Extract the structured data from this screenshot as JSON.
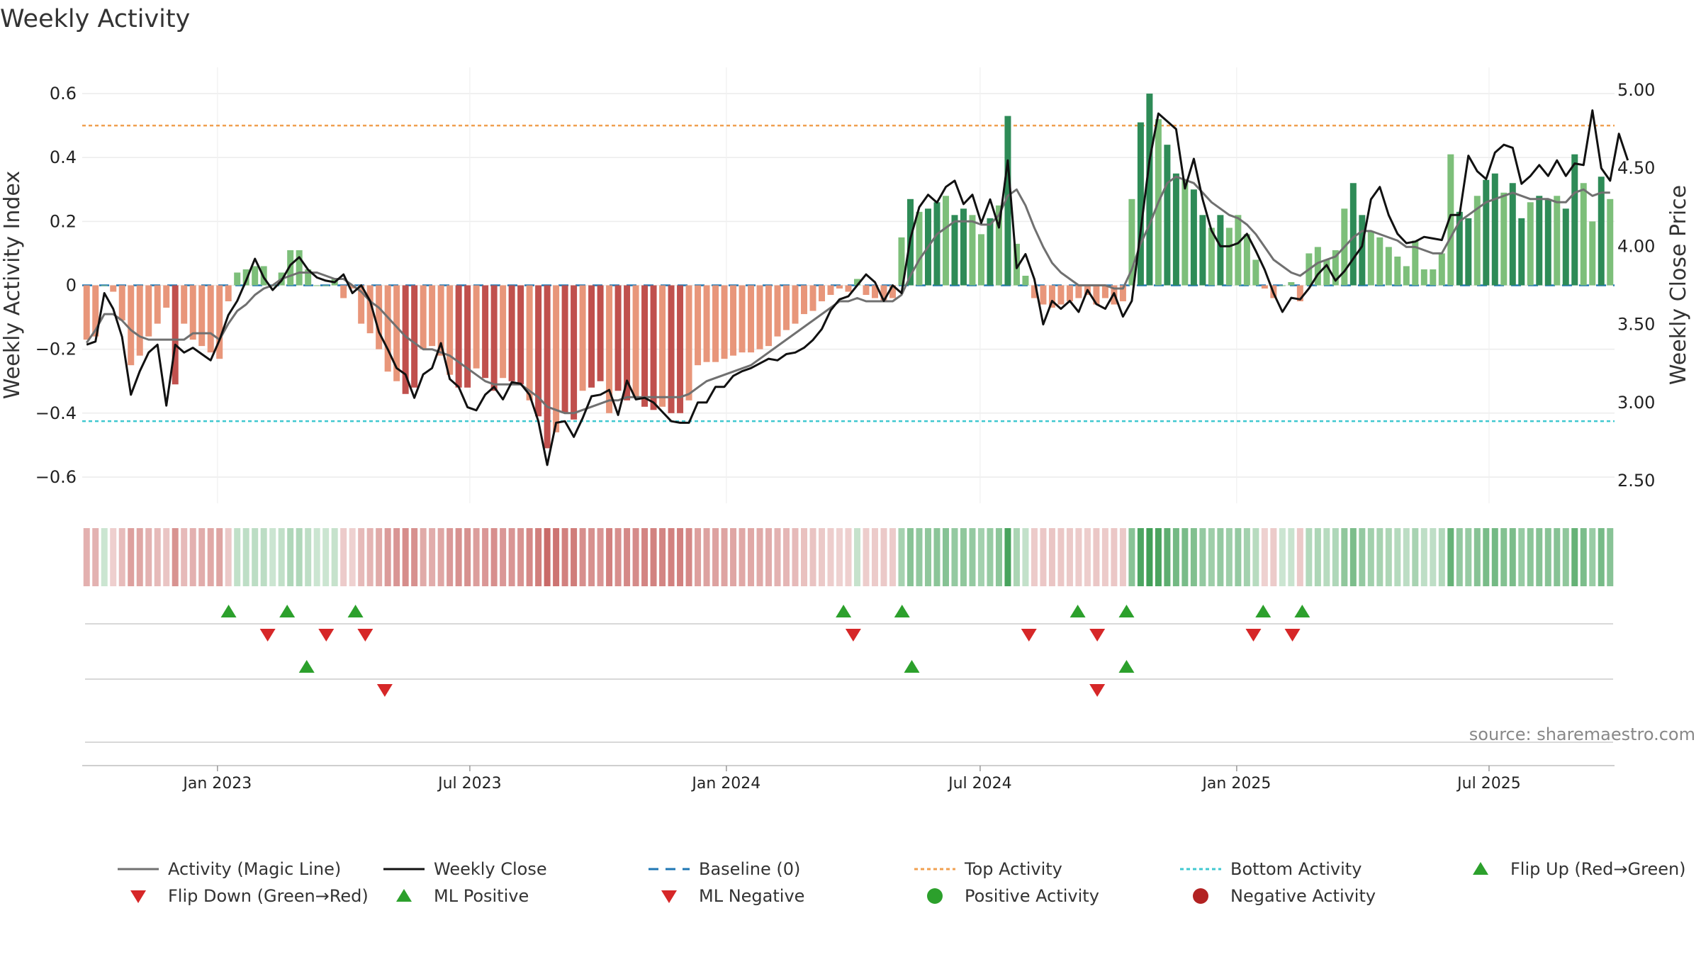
{
  "chart_data": {
    "type": "bar",
    "title": "Weekly Activity",
    "ylabel": "Weekly Activity Index",
    "y2label": "Weekly Close Price",
    "ylim": [
      -0.66,
      0.66
    ],
    "y2lim": [
      2.4,
      5.1
    ],
    "yticks": [
      0.6,
      0.4,
      0.2,
      0,
      -0.2,
      -0.4,
      -0.6
    ],
    "ytick_labels": [
      "0.6",
      "0.4",
      "0.2",
      "0",
      "−0.2",
      "−0.4",
      "−0.6"
    ],
    "y2ticks": [
      5.0,
      4.5,
      4.0,
      3.5,
      3.0,
      2.5
    ],
    "y2tick_labels": [
      "5.00",
      "4.50",
      "4.00",
      "3.50",
      "3.00",
      "2.50"
    ],
    "x_start": "2022-09-26",
    "x_end": "2025-09-29",
    "xticks": [
      "2023-01-01",
      "2023-07-01",
      "2024-01-01",
      "2024-07-01",
      "2025-01-01",
      "2025-07-01"
    ],
    "xtick_labels": [
      "Jan 2023",
      "Jul 2023",
      "Jan 2024",
      "Jul 2024",
      "Jan 2025",
      "Jul 2025"
    ],
    "reference_lines": {
      "baseline": 0,
      "top_activity": 0.5,
      "bottom_activity": -0.425
    },
    "grid": true,
    "source": "source: sharemaestro.com",
    "series": [
      {
        "name": "Weekly Activity (bars)",
        "key": "activity",
        "color_positive": "#2e8b57",
        "color_negative": "#c0504d"
      },
      {
        "name": "Activity (Magic Line)",
        "key": "magic_line",
        "color": "#707070"
      },
      {
        "name": "Weekly Close",
        "key": "close",
        "color": "#111111"
      }
    ],
    "activity": [
      -0.17,
      -0.16,
      0.0,
      -0.02,
      -0.11,
      -0.25,
      -0.22,
      -0.16,
      -0.12,
      -0.07,
      -0.31,
      -0.12,
      -0.17,
      -0.19,
      -0.21,
      -0.23,
      -0.05,
      0.04,
      0.05,
      0.06,
      0.06,
      0.0,
      0.04,
      0.11,
      0.11,
      0.05,
      0.0,
      0.0,
      0.02,
      -0.04,
      -0.01,
      -0.12,
      -0.15,
      -0.2,
      -0.27,
      -0.3,
      -0.34,
      -0.32,
      -0.2,
      -0.19,
      -0.22,
      -0.28,
      -0.32,
      -0.32,
      -0.26,
      -0.29,
      -0.33,
      -0.29,
      -0.3,
      -0.31,
      -0.36,
      -0.41,
      -0.51,
      -0.46,
      -0.4,
      -0.42,
      -0.33,
      -0.32,
      -0.3,
      -0.4,
      -0.33,
      -0.36,
      -0.35,
      -0.38,
      -0.39,
      -0.38,
      -0.4,
      -0.4,
      -0.36,
      -0.25,
      -0.24,
      -0.24,
      -0.23,
      -0.22,
      -0.21,
      -0.21,
      -0.2,
      -0.19,
      -0.16,
      -0.14,
      -0.12,
      -0.09,
      -0.08,
      -0.05,
      -0.03,
      -0.01,
      -0.02,
      0.02,
      -0.03,
      -0.04,
      -0.05,
      -0.04,
      0.15,
      0.27,
      0.23,
      0.24,
      0.26,
      0.28,
      0.22,
      0.24,
      0.22,
      0.16,
      0.21,
      0.25,
      0.53,
      0.13,
      0.03,
      -0.04,
      -0.06,
      -0.07,
      -0.06,
      -0.05,
      -0.04,
      -0.03,
      -0.06,
      -0.04,
      -0.06,
      -0.05,
      0.27,
      0.51,
      0.6,
      0.52,
      0.44,
      0.35,
      0.33,
      0.3,
      0.22,
      0.18,
      0.22,
      0.18,
      0.22,
      0.16,
      0.08,
      -0.01,
      -0.04,
      0.0,
      0.01,
      -0.05,
      0.1,
      0.12,
      0.08,
      0.11,
      0.24,
      0.32,
      0.22,
      0.17,
      0.15,
      0.12,
      0.09,
      0.06,
      0.14,
      0.05,
      0.05,
      0.1,
      0.41,
      0.23,
      0.21,
      0.28,
      0.33,
      0.35,
      0.29,
      0.32,
      0.21,
      0.26,
      0.28,
      0.27,
      0.28,
      0.24,
      0.41,
      0.32,
      0.2,
      0.34,
      0.27
    ],
    "magic_line": [
      -0.18,
      -0.14,
      -0.09,
      -0.09,
      -0.11,
      -0.14,
      -0.16,
      -0.17,
      -0.17,
      -0.17,
      -0.17,
      -0.17,
      -0.15,
      -0.15,
      -0.15,
      -0.17,
      -0.12,
      -0.08,
      -0.06,
      -0.03,
      -0.01,
      0.0,
      0.02,
      0.03,
      0.04,
      0.04,
      0.04,
      0.03,
      0.02,
      0.02,
      0.0,
      -0.02,
      -0.05,
      -0.07,
      -0.1,
      -0.13,
      -0.16,
      -0.18,
      -0.2,
      -0.2,
      -0.21,
      -0.22,
      -0.24,
      -0.26,
      -0.28,
      -0.3,
      -0.31,
      -0.31,
      -0.31,
      -0.31,
      -0.33,
      -0.35,
      -0.38,
      -0.39,
      -0.4,
      -0.4,
      -0.39,
      -0.38,
      -0.37,
      -0.36,
      -0.36,
      -0.35,
      -0.35,
      -0.35,
      -0.35,
      -0.35,
      -0.35,
      -0.35,
      -0.34,
      -0.32,
      -0.3,
      -0.29,
      -0.28,
      -0.27,
      -0.26,
      -0.25,
      -0.23,
      -0.21,
      -0.19,
      -0.17,
      -0.15,
      -0.13,
      -0.11,
      -0.09,
      -0.07,
      -0.05,
      -0.05,
      -0.04,
      -0.05,
      -0.05,
      -0.05,
      -0.05,
      -0.03,
      0.03,
      0.08,
      0.12,
      0.16,
      0.18,
      0.2,
      0.2,
      0.2,
      0.19,
      0.19,
      0.22,
      0.28,
      0.3,
      0.25,
      0.18,
      0.12,
      0.07,
      0.04,
      0.02,
      0.0,
      0.0,
      0.0,
      0.0,
      -0.01,
      -0.01,
      0.05,
      0.13,
      0.19,
      0.26,
      0.32,
      0.34,
      0.33,
      0.32,
      0.29,
      0.26,
      0.24,
      0.22,
      0.21,
      0.19,
      0.16,
      0.12,
      0.08,
      0.06,
      0.04,
      0.03,
      0.05,
      0.07,
      0.08,
      0.09,
      0.12,
      0.15,
      0.17,
      0.17,
      0.16,
      0.15,
      0.14,
      0.12,
      0.12,
      0.11,
      0.1,
      0.1,
      0.15,
      0.2,
      0.22,
      0.24,
      0.26,
      0.27,
      0.28,
      0.29,
      0.28,
      0.27,
      0.27,
      0.27,
      0.26,
      0.26,
      0.29,
      0.3,
      0.28,
      0.29,
      0.29
    ],
    "close": [
      3.37,
      3.39,
      3.7,
      3.6,
      3.42,
      3.05,
      3.2,
      3.32,
      3.37,
      2.98,
      3.37,
      3.32,
      3.35,
      3.31,
      3.27,
      3.4,
      3.56,
      3.65,
      3.78,
      3.92,
      3.8,
      3.72,
      3.78,
      3.88,
      3.93,
      3.85,
      3.8,
      3.78,
      3.77,
      3.82,
      3.7,
      3.75,
      3.65,
      3.45,
      3.34,
      3.22,
      3.18,
      3.03,
      3.18,
      3.22,
      3.38,
      3.15,
      3.1,
      2.97,
      2.95,
      3.05,
      3.1,
      3.02,
      3.13,
      3.12,
      3.05,
      2.88,
      2.6,
      2.87,
      2.88,
      2.78,
      2.9,
      3.04,
      3.05,
      3.08,
      2.92,
      3.14,
      3.02,
      3.03,
      3.0,
      2.94,
      2.88,
      2.87,
      2.87,
      3.0,
      3.0,
      3.1,
      3.1,
      3.17,
      3.2,
      3.22,
      3.25,
      3.28,
      3.27,
      3.31,
      3.32,
      3.35,
      3.4,
      3.47,
      3.59,
      3.66,
      3.68,
      3.75,
      3.82,
      3.77,
      3.65,
      3.75,
      3.7,
      4.05,
      4.25,
      4.33,
      4.28,
      4.38,
      4.42,
      4.27,
      4.33,
      4.15,
      4.3,
      4.12,
      4.55,
      3.86,
      3.95,
      3.79,
      3.5,
      3.65,
      3.6,
      3.65,
      3.58,
      3.72,
      3.63,
      3.6,
      3.7,
      3.55,
      3.65,
      4.1,
      4.55,
      4.85,
      4.8,
      4.75,
      4.37,
      4.56,
      4.3,
      4.1,
      4.0,
      4.0,
      4.02,
      4.08,
      3.97,
      3.85,
      3.7,
      3.58,
      3.67,
      3.66,
      3.73,
      3.82,
      3.88,
      3.78,
      3.84,
      3.92,
      4.0,
      4.3,
      4.38,
      4.2,
      4.08,
      4.02,
      4.03,
      4.06,
      4.05,
      4.04,
      4.2,
      4.2,
      4.58,
      4.48,
      4.43,
      4.6,
      4.65,
      4.63,
      4.4,
      4.45,
      4.52,
      4.45,
      4.55,
      4.45,
      4.53,
      4.52,
      4.87,
      4.5,
      4.42,
      4.72,
      4.55
    ]
  },
  "flip_markers": {
    "flip_up_dates": [
      "2023-01-09",
      "2023-02-20",
      "2023-04-10",
      "2024-03-25",
      "2024-05-06",
      "2024-09-09",
      "2024-10-14",
      "2025-01-20",
      "2025-02-17"
    ],
    "flip_down_dates": [
      "2023-02-06",
      "2023-03-20",
      "2023-04-17",
      "2024-04-01",
      "2024-08-05",
      "2024-09-23",
      "2025-01-13",
      "2025-02-10"
    ],
    "ml_positive_dates": [
      "2023-03-06",
      "2024-05-13",
      "2024-10-14"
    ],
    "ml_negative_dates": [
      "2023-05-01",
      "2024-09-23"
    ]
  },
  "colors": {
    "positive_dark": "#2e8b57",
    "positive_light": "#7dbf7a",
    "negative_dark": "#c0504d",
    "negative_light": "#e8967a",
    "top_line": "#f0a050",
    "bottom_line": "#40c8d0",
    "baseline": "#1f77b4",
    "marker_up": "#2ca02c",
    "marker_down": "#d62728",
    "positive_dot": "#2ca02c",
    "negative_dot": "#b22222"
  },
  "legend": [
    {
      "label": "Activity (Magic Line)",
      "kind": "line",
      "color": "#707070",
      "dash": ""
    },
    {
      "label": "Weekly Close",
      "kind": "line",
      "color": "#111111",
      "dash": ""
    },
    {
      "label": "Baseline (0)",
      "kind": "line",
      "color": "#1f77b4",
      "dash": "14,10"
    },
    {
      "label": "Top Activity",
      "kind": "line",
      "color": "#f0a050",
      "dash": "5,4"
    },
    {
      "label": "Bottom Activity",
      "kind": "line",
      "color": "#40c8d0",
      "dash": "5,4"
    },
    {
      "label": "Flip Up (Red→Green)",
      "kind": "tri-up",
      "color": "#2ca02c"
    },
    {
      "label": "Flip Down (Green→Red)",
      "kind": "tri-down",
      "color": "#d62728"
    },
    {
      "label": "ML Positive",
      "kind": "tri-up",
      "color": "#2ca02c"
    },
    {
      "label": "ML Negative",
      "kind": "tri-down",
      "color": "#d62728"
    },
    {
      "label": "Positive Activity",
      "kind": "dot",
      "color": "#2ca02c"
    },
    {
      "label": "Negative Activity",
      "kind": "dot",
      "color": "#b22222"
    }
  ]
}
